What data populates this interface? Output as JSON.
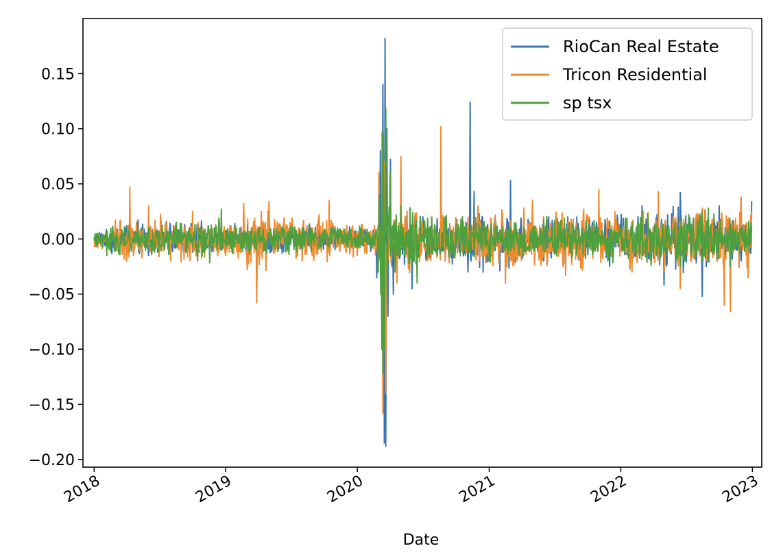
{
  "chart_data": {
    "type": "line",
    "xlabel": "Date",
    "ylabel": "",
    "x_ticks": [
      "2018",
      "2019",
      "2020",
      "2021",
      "2022",
      "2023"
    ],
    "y_ticks": [
      0.15,
      0.1,
      0.05,
      0.0,
      -0.05,
      -0.1,
      -0.15,
      -0.2
    ],
    "y_tick_labels": [
      "0.15",
      "0.10",
      "0.05",
      "0.00",
      "−0.05",
      "−0.10",
      "−0.15",
      "−0.20"
    ],
    "xlim": [
      "2017-12-01",
      "2023-01-27"
    ],
    "ylim": [
      -0.207,
      0.2
    ],
    "grid": false,
    "legend_position": "top-right",
    "series": [
      {
        "name": "RioCan Real Estate",
        "color": "#3a74b0",
        "points": [
          [
            "2018-01-01",
            0.0
          ],
          [
            "2018-02-15",
            -0.01
          ],
          [
            "2018-04-01",
            0.012
          ],
          [
            "2018-06-01",
            -0.015
          ],
          [
            "2018-08-01",
            0.01
          ],
          [
            "2018-10-01",
            -0.012
          ],
          [
            "2018-12-01",
            0.01
          ],
          [
            "2019-03-01",
            -0.01
          ],
          [
            "2019-06-01",
            0.008
          ],
          [
            "2019-09-01",
            -0.01
          ],
          [
            "2019-12-01",
            0.005
          ],
          [
            "2020-02-24",
            -0.035
          ],
          [
            "2020-03-05",
            0.08
          ],
          [
            "2020-03-09",
            -0.06
          ],
          [
            "2020-03-12",
            0.14
          ],
          [
            "2020-03-16",
            -0.185
          ],
          [
            "2020-03-18",
            0.182
          ],
          [
            "2020-03-20",
            -0.188
          ],
          [
            "2020-03-23",
            0.1
          ],
          [
            "2020-03-26",
            -0.07
          ],
          [
            "2020-04-02",
            0.072
          ],
          [
            "2020-04-10",
            -0.05
          ],
          [
            "2020-05-01",
            0.04
          ],
          [
            "2020-06-01",
            -0.045
          ],
          [
            "2020-07-01",
            0.02
          ],
          [
            "2020-09-01",
            -0.02
          ],
          [
            "2020-11-03",
            -0.03
          ],
          [
            "2020-11-09",
            0.124
          ],
          [
            "2020-11-12",
            -0.02
          ],
          [
            "2020-11-20",
            0.043
          ],
          [
            "2020-12-15",
            -0.03
          ],
          [
            "2021-03-01",
            0.053
          ],
          [
            "2021-06-01",
            -0.02
          ],
          [
            "2021-09-01",
            0.02
          ],
          [
            "2021-12-01",
            -0.025
          ],
          [
            "2022-03-01",
            0.03
          ],
          [
            "2022-05-01",
            -0.042
          ],
          [
            "2022-06-15",
            0.042
          ],
          [
            "2022-08-15",
            -0.052
          ],
          [
            "2022-10-01",
            0.03
          ],
          [
            "2022-12-01",
            -0.02
          ],
          [
            "2022-12-30",
            0.034
          ]
        ]
      },
      {
        "name": "Tricon Residential",
        "color": "#f08a2e",
        "points": [
          [
            "2018-01-01",
            0.0
          ],
          [
            "2018-03-01",
            0.017
          ],
          [
            "2018-04-01",
            -0.02
          ],
          [
            "2018-04-10",
            0.047
          ],
          [
            "2018-04-20",
            -0.015
          ],
          [
            "2018-06-01",
            0.03
          ],
          [
            "2018-08-01",
            -0.02
          ],
          [
            "2018-10-01",
            0.025
          ],
          [
            "2019-01-01",
            -0.015
          ],
          [
            "2019-02-20",
            0.032
          ],
          [
            "2019-03-28",
            -0.058
          ],
          [
            "2019-05-01",
            0.034
          ],
          [
            "2019-08-01",
            -0.02
          ],
          [
            "2019-10-15",
            0.035
          ],
          [
            "2020-01-01",
            -0.015
          ],
          [
            "2020-03-01",
            0.06
          ],
          [
            "2020-03-12",
            -0.158
          ],
          [
            "2020-03-16",
            0.07
          ],
          [
            "2020-03-20",
            -0.14
          ],
          [
            "2020-04-01",
            0.06
          ],
          [
            "2020-04-20",
            -0.04
          ],
          [
            "2020-05-01",
            0.075
          ],
          [
            "2020-06-15",
            -0.03
          ],
          [
            "2020-08-20",
            0.102
          ],
          [
            "2020-09-01",
            -0.02
          ],
          [
            "2020-12-01",
            0.03
          ],
          [
            "2021-02-15",
            -0.04
          ],
          [
            "2021-05-01",
            0.035
          ],
          [
            "2021-08-01",
            -0.033
          ],
          [
            "2021-11-01",
            0.045
          ],
          [
            "2022-02-01",
            -0.03
          ],
          [
            "2022-04-15",
            0.043
          ],
          [
            "2022-06-15",
            -0.045
          ],
          [
            "2022-08-15",
            0.028
          ],
          [
            "2022-10-15",
            -0.06
          ],
          [
            "2022-11-01",
            -0.066
          ],
          [
            "2022-12-01",
            0.038
          ],
          [
            "2022-12-20",
            -0.035
          ],
          [
            "2022-12-30",
            0.024
          ]
        ]
      },
      {
        "name": "sp tsx",
        "color": "#4e9f3d",
        "points": [
          [
            "2018-01-01",
            0.0
          ],
          [
            "2018-02-05",
            -0.015
          ],
          [
            "2018-06-01",
            0.01
          ],
          [
            "2018-10-15",
            -0.02
          ],
          [
            "2018-12-20",
            0.027
          ],
          [
            "2019-03-01",
            -0.008
          ],
          [
            "2019-08-01",
            0.01
          ],
          [
            "2019-12-01",
            -0.005
          ],
          [
            "2020-02-28",
            -0.03
          ],
          [
            "2020-03-02",
            0.04
          ],
          [
            "2020-03-06",
            -0.05
          ],
          [
            "2020-03-09",
            -0.1
          ],
          [
            "2020-03-10",
            0.097
          ],
          [
            "2020-03-12",
            -0.122
          ],
          [
            "2020-03-13",
            0.095
          ],
          [
            "2020-03-16",
            -0.1
          ],
          [
            "2020-03-20",
            0.119
          ],
          [
            "2020-03-24",
            -0.05
          ],
          [
            "2020-04-01",
            0.06
          ],
          [
            "2020-04-15",
            -0.03
          ],
          [
            "2020-05-01",
            0.03
          ],
          [
            "2020-06-15",
            -0.04
          ],
          [
            "2020-09-01",
            0.02
          ],
          [
            "2021-01-01",
            -0.02
          ],
          [
            "2021-06-01",
            0.018
          ],
          [
            "2021-11-26",
            -0.02
          ],
          [
            "2022-03-01",
            0.025
          ],
          [
            "2022-06-15",
            -0.025
          ],
          [
            "2022-09-01",
            0.028
          ],
          [
            "2022-11-01",
            -0.025
          ],
          [
            "2022-12-30",
            0.01
          ]
        ]
      }
    ]
  }
}
